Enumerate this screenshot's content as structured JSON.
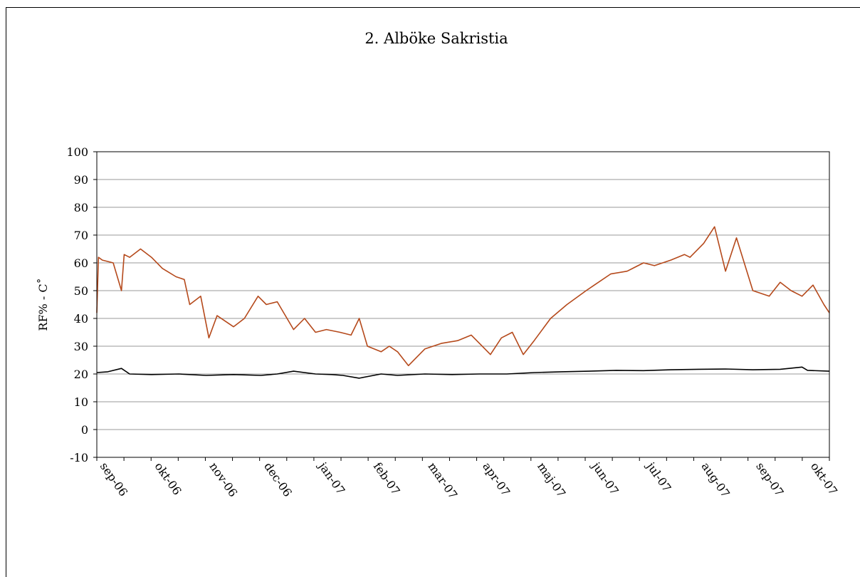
{
  "chart_data": {
    "type": "line",
    "title": "2. Alböke Sakristia",
    "ylabel": "RF% - C˚",
    "xlabel": "",
    "ylim": [
      -10,
      100
    ],
    "yticks": [
      -10,
      0,
      10,
      20,
      30,
      40,
      50,
      60,
      70,
      80,
      90,
      100
    ],
    "grid": true,
    "x_ticks": [
      "sep-06",
      "okt-06",
      "nov-06",
      "dec-06",
      "jan-07",
      "feb-07",
      "mar-07",
      "apr-07",
      "maj-07",
      "jun-07",
      "jul-07",
      "aug-07",
      "sep-07",
      "okt-07"
    ],
    "x_range_months": [
      0,
      13.4
    ],
    "series": [
      {
        "color": "#b5491b",
        "x": [
          0,
          0.03,
          0.1,
          0.3,
          0.45,
          0.5,
          0.6,
          0.8,
          1.0,
          1.2,
          1.45,
          1.6,
          1.7,
          1.9,
          2.05,
          2.2,
          2.5,
          2.7,
          2.95,
          3.1,
          3.3,
          3.6,
          3.8,
          4.0,
          4.2,
          4.45,
          4.65,
          4.8,
          4.95,
          5.2,
          5.35,
          5.5,
          5.7,
          6.0,
          6.3,
          6.6,
          6.85,
          7.0,
          7.2,
          7.4,
          7.6,
          7.8,
          8.0,
          8.3,
          8.6,
          8.95,
          9.1,
          9.4,
          9.7,
          10.0,
          10.2,
          10.5,
          10.75,
          10.85,
          11.1,
          11.3,
          11.5,
          11.7,
          12.0,
          12.3,
          12.5,
          12.7,
          12.9,
          13.1,
          13.3,
          13.4
        ],
        "y": [
          42,
          62,
          61,
          60,
          50,
          63,
          62,
          65,
          62,
          58,
          55,
          54,
          45,
          48,
          33,
          41,
          37,
          40,
          48,
          45,
          46,
          36,
          40,
          35,
          36,
          35,
          34,
          40,
          30,
          28,
          30,
          28,
          23,
          29,
          31,
          32,
          34,
          31,
          27,
          33,
          35,
          27,
          32,
          40,
          45,
          50,
          52,
          56,
          57,
          60,
          59,
          61,
          63,
          62,
          67,
          73,
          57,
          69,
          50,
          48,
          53,
          50,
          48,
          52,
          45,
          42
        ],
        "name": ""
      },
      {
        "color": "#000000",
        "x": [
          0,
          0.2,
          0.45,
          0.6,
          1.0,
          1.5,
          2.0,
          2.5,
          3.0,
          3.3,
          3.6,
          4.0,
          4.3,
          4.5,
          4.8,
          5.2,
          5.5,
          6.0,
          6.5,
          7.0,
          7.5,
          8.0,
          8.5,
          9.0,
          9.5,
          10.0,
          10.5,
          11.0,
          11.5,
          12.0,
          12.5,
          12.9,
          13.0,
          13.4
        ],
        "y": [
          20.5,
          20.8,
          22,
          20,
          19.8,
          20,
          19.5,
          19.8,
          19.5,
          20,
          21,
          20,
          19.8,
          19.5,
          18.5,
          20,
          19.5,
          20,
          19.8,
          20,
          20,
          20.5,
          20.8,
          21,
          21.3,
          21.2,
          21.5,
          21.7,
          21.8,
          21.5,
          21.7,
          22.5,
          21.3,
          21
        ]
      }
    ]
  }
}
